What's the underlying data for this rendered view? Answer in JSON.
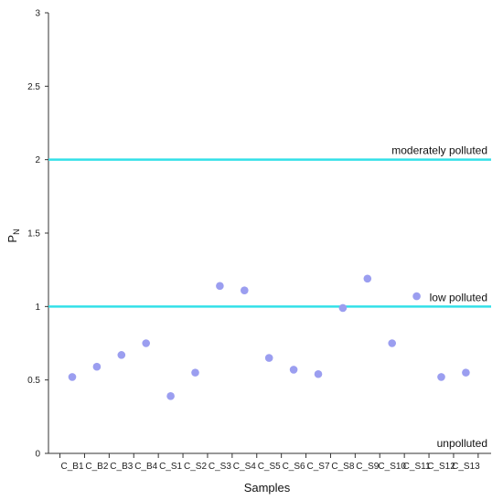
{
  "chart_data": {
    "type": "scatter",
    "xlabel": "Samples",
    "ylabel": {
      "base": "P",
      "sub": "N"
    },
    "ylim": [
      0,
      3
    ],
    "yticks": [
      "0",
      "0.5",
      "1",
      "1.5",
      "2",
      "2.5",
      "3"
    ],
    "grid": false,
    "categories": [
      "C_B1",
      "C_B2",
      "C_B3",
      "C_B4",
      "C_S1",
      "C_S2",
      "C_S3",
      "C_S4",
      "C_S5",
      "C_S6",
      "C_S7",
      "C_S8",
      "C_S9",
      "C_S10",
      "C_S11",
      "C_S12",
      "C_S13"
    ],
    "values": [
      0.52,
      0.59,
      0.67,
      0.75,
      0.39,
      0.55,
      1.14,
      1.11,
      0.65,
      0.57,
      0.54,
      0.99,
      1.19,
      0.75,
      1.07,
      0.52,
      0.55
    ],
    "reference_lines": [
      {
        "y": 2,
        "label": "moderately polluted"
      },
      {
        "y": 1,
        "label": "low polluted"
      }
    ],
    "zone_labels": [
      {
        "y": 0,
        "label": "unpolluted"
      }
    ],
    "colors": {
      "marker": "#9b9ef0",
      "reference_line": "#33e0e8",
      "axis": "#333333"
    }
  }
}
